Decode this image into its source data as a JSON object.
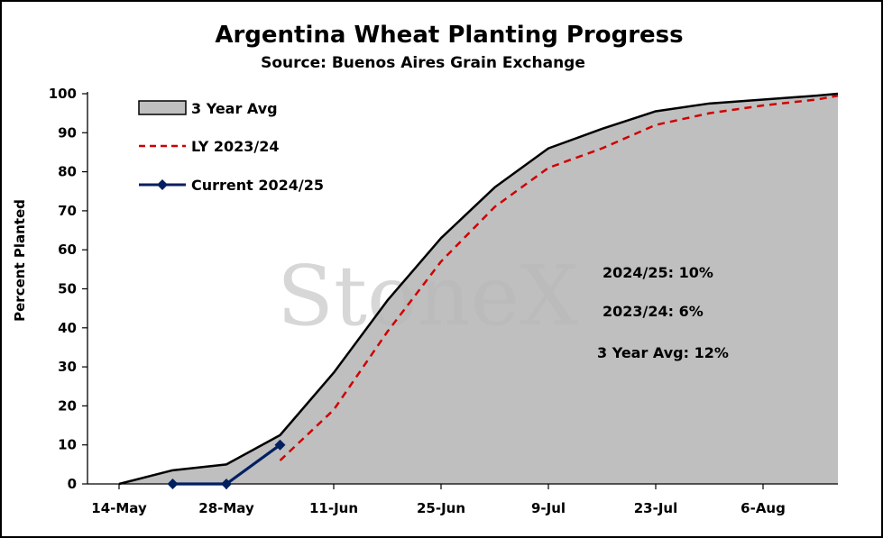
{
  "chart_data": {
    "type": "area",
    "title": "Argentina Wheat Planting Progress",
    "subtitle": "Source: Buenos Aires Grain Exchange",
    "ylabel": "Percent Planted",
    "xlabel": "",
    "x_start": "14-May",
    "ylim": [
      0,
      100
    ],
    "yticks": [
      0,
      10,
      20,
      30,
      40,
      50,
      60,
      70,
      80,
      90,
      100
    ],
    "xticks": [
      "14-May",
      "28-May",
      "11-Jun",
      "25-Jun",
      "9-Jul",
      "23-Jul",
      "6-Aug"
    ],
    "watermark": "StoneX",
    "legend": {
      "placement": "top-left",
      "entries": [
        "3 Year Avg",
        "LY 2023/24",
        "Current 2024/25"
      ]
    },
    "annotations": [
      "2024/25: 10%",
      "2023/24: 6%",
      "3 Year Avg: 12%"
    ],
    "series": [
      {
        "name": "3 Year Avg",
        "style": "area",
        "fill": "#bfbfbf",
        "line": "#000000",
        "x": [
          "14-May",
          "21-May",
          "28-May",
          "4-Jun",
          "11-Jun",
          "18-Jun",
          "25-Jun",
          "2-Jul",
          "9-Jul",
          "16-Jul",
          "23-Jul",
          "30-Jul",
          "6-Aug",
          "13-Aug",
          "16-Aug"
        ],
        "y": [
          0,
          3.5,
          5,
          12.5,
          28.5,
          47,
          63,
          76,
          86,
          91,
          95.5,
          97.5,
          98.5,
          99.5,
          100
        ]
      },
      {
        "name": "LY 2023/24",
        "style": "dashed",
        "color": "#d00000",
        "x": [
          "4-Jun",
          "11-Jun",
          "18-Jun",
          "25-Jun",
          "2-Jul",
          "9-Jul",
          "16-Jul",
          "23-Jul",
          "30-Jul",
          "6-Aug",
          "13-Aug",
          "16-Aug"
        ],
        "y": [
          6,
          19,
          39,
          57,
          71,
          81,
          86,
          92,
          95,
          97,
          98.5,
          99.5
        ]
      },
      {
        "name": "Current 2024/25",
        "style": "line-marker",
        "color": "#002060",
        "x": [
          "21-May",
          "28-May",
          "4-Jun"
        ],
        "y": [
          0,
          0,
          10
        ]
      }
    ]
  }
}
